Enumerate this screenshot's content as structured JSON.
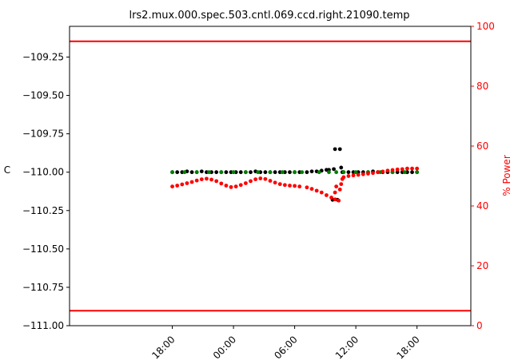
{
  "chart_data": {
    "type": "scatter",
    "title": "lrs2.mux.000.spec.503.cntl.069.ccd.right.21090.temp",
    "ylabel": "C",
    "y2label": "% Power",
    "ylim": [
      -111.0,
      -109.05
    ],
    "y2lim": [
      0,
      100
    ],
    "xlim": [
      -0.42,
      1.22
    ],
    "y_ticks": [
      -111.0,
      -110.75,
      -110.5,
      -110.25,
      -110.0,
      -109.75,
      -109.5,
      -109.25
    ],
    "y_tick_labels": [
      "−111.00",
      "−110.75",
      "−110.50",
      "−110.25",
      "−110.00",
      "−109.75",
      "−109.50",
      "−109.25"
    ],
    "y2_ticks": [
      0,
      20,
      40,
      60,
      80,
      100
    ],
    "y2_tick_labels": [
      "0",
      "20",
      "40",
      "60",
      "80",
      "100"
    ],
    "x_ticks": [
      0,
      0.25,
      0.5,
      0.75,
      1.0
    ],
    "x_tick_labels": [
      "18:00",
      "00:00",
      "06:00",
      "12:00",
      "18:00"
    ],
    "x_tick_label_rotation": -45,
    "limit_lines": {
      "power_high": 95,
      "power_low": 5,
      "color": "#ff0000"
    },
    "series": [
      {
        "color": "#000000",
        "axis": "left",
        "values": [
          [
            0.0,
            -110.0
          ],
          [
            0.02,
            -110.0
          ],
          [
            0.04,
            -110.0
          ],
          [
            0.06,
            -109.995
          ],
          [
            0.08,
            -110.0
          ],
          [
            0.1,
            -110.0
          ],
          [
            0.12,
            -109.995
          ],
          [
            0.14,
            -110.0
          ],
          [
            0.16,
            -110.0
          ],
          [
            0.18,
            -110.0
          ],
          [
            0.2,
            -110.0
          ],
          [
            0.22,
            -110.0
          ],
          [
            0.24,
            -110.0
          ],
          [
            0.26,
            -110.0
          ],
          [
            0.28,
            -110.0
          ],
          [
            0.3,
            -110.0
          ],
          [
            0.32,
            -110.0
          ],
          [
            0.34,
            -109.995
          ],
          [
            0.36,
            -110.0
          ],
          [
            0.38,
            -110.0
          ],
          [
            0.4,
            -110.0
          ],
          [
            0.42,
            -110.0
          ],
          [
            0.44,
            -110.0
          ],
          [
            0.46,
            -110.0
          ],
          [
            0.48,
            -110.0
          ],
          [
            0.5,
            -110.0
          ],
          [
            0.52,
            -110.0
          ],
          [
            0.55,
            -110.0
          ],
          [
            0.57,
            -109.995
          ],
          [
            0.59,
            -109.995
          ],
          [
            0.61,
            -109.99
          ],
          [
            0.63,
            -109.985
          ],
          [
            0.64,
            -109.985
          ],
          [
            0.655,
            -110.18
          ],
          [
            0.66,
            -109.98
          ],
          [
            0.675,
            -110.18
          ],
          [
            0.665,
            -109.85
          ],
          [
            0.685,
            -109.85
          ],
          [
            0.69,
            -109.97
          ],
          [
            0.695,
            -110.0
          ],
          [
            0.7,
            -110.0
          ],
          [
            0.72,
            -110.0
          ],
          [
            0.74,
            -110.0
          ],
          [
            0.76,
            -110.0
          ],
          [
            0.78,
            -110.0
          ],
          [
            0.8,
            -110.0
          ],
          [
            0.82,
            -109.995
          ],
          [
            0.84,
            -110.0
          ],
          [
            0.86,
            -110.0
          ],
          [
            0.88,
            -110.0
          ],
          [
            0.9,
            -110.0
          ],
          [
            0.92,
            -110.0
          ],
          [
            0.94,
            -110.0
          ],
          [
            0.96,
            -110.0
          ],
          [
            0.98,
            -110.0
          ],
          [
            1.0,
            -110.0
          ]
        ]
      },
      {
        "color": "#008000",
        "axis": "left",
        "values": [
          [
            0.0,
            -110.0
          ],
          [
            0.05,
            -110.0
          ],
          [
            0.1,
            -110.0
          ],
          [
            0.15,
            -110.0
          ],
          [
            0.2,
            -110.0
          ],
          [
            0.25,
            -110.0
          ],
          [
            0.3,
            -110.0
          ],
          [
            0.35,
            -110.0
          ],
          [
            0.4,
            -110.0
          ],
          [
            0.45,
            -110.0
          ],
          [
            0.5,
            -110.0
          ],
          [
            0.53,
            -110.0
          ],
          [
            0.6,
            -110.0
          ],
          [
            0.64,
            -110.0
          ],
          [
            0.67,
            -110.0
          ],
          [
            0.7,
            -110.0
          ],
          [
            0.75,
            -110.0
          ],
          [
            0.8,
            -110.0
          ],
          [
            0.85,
            -110.0
          ],
          [
            0.9,
            -110.0
          ],
          [
            0.95,
            -110.0
          ],
          [
            1.0,
            -110.0
          ]
        ]
      },
      {
        "color": "#ff0000",
        "axis": "right",
        "values": [
          [
            0.0,
            46.5
          ],
          [
            0.02,
            46.8
          ],
          [
            0.04,
            47.2
          ],
          [
            0.06,
            47.6
          ],
          [
            0.08,
            48.0
          ],
          [
            0.1,
            48.5
          ],
          [
            0.12,
            48.9
          ],
          [
            0.14,
            49.1
          ],
          [
            0.16,
            48.8
          ],
          [
            0.18,
            48.3
          ],
          [
            0.2,
            47.5
          ],
          [
            0.22,
            46.8
          ],
          [
            0.24,
            46.3
          ],
          [
            0.26,
            46.5
          ],
          [
            0.28,
            47.0
          ],
          [
            0.3,
            47.6
          ],
          [
            0.32,
            48.3
          ],
          [
            0.34,
            48.9
          ],
          [
            0.36,
            49.2
          ],
          [
            0.38,
            49.0
          ],
          [
            0.4,
            48.4
          ],
          [
            0.42,
            47.8
          ],
          [
            0.44,
            47.3
          ],
          [
            0.46,
            47.0
          ],
          [
            0.48,
            46.8
          ],
          [
            0.5,
            46.7
          ],
          [
            0.52,
            46.5
          ],
          [
            0.55,
            46.2
          ],
          [
            0.57,
            45.7
          ],
          [
            0.59,
            45.1
          ],
          [
            0.61,
            44.5
          ],
          [
            0.63,
            43.6
          ],
          [
            0.65,
            42.8
          ],
          [
            0.665,
            42.2
          ],
          [
            0.68,
            41.8
          ],
          [
            0.665,
            44.5
          ],
          [
            0.685,
            45.5
          ],
          [
            0.67,
            46.5
          ],
          [
            0.69,
            47.3
          ],
          [
            0.695,
            49.0
          ],
          [
            0.7,
            49.6
          ],
          [
            0.72,
            50.0
          ],
          [
            0.74,
            50.2
          ],
          [
            0.76,
            50.4
          ],
          [
            0.78,
            50.6
          ],
          [
            0.8,
            50.8
          ],
          [
            0.82,
            51.0
          ],
          [
            0.84,
            51.3
          ],
          [
            0.86,
            51.5
          ],
          [
            0.88,
            51.8
          ],
          [
            0.9,
            52.0
          ],
          [
            0.92,
            52.2
          ],
          [
            0.94,
            52.3
          ],
          [
            0.96,
            52.5
          ],
          [
            0.98,
            52.5
          ],
          [
            1.0,
            52.5
          ]
        ]
      }
    ]
  }
}
